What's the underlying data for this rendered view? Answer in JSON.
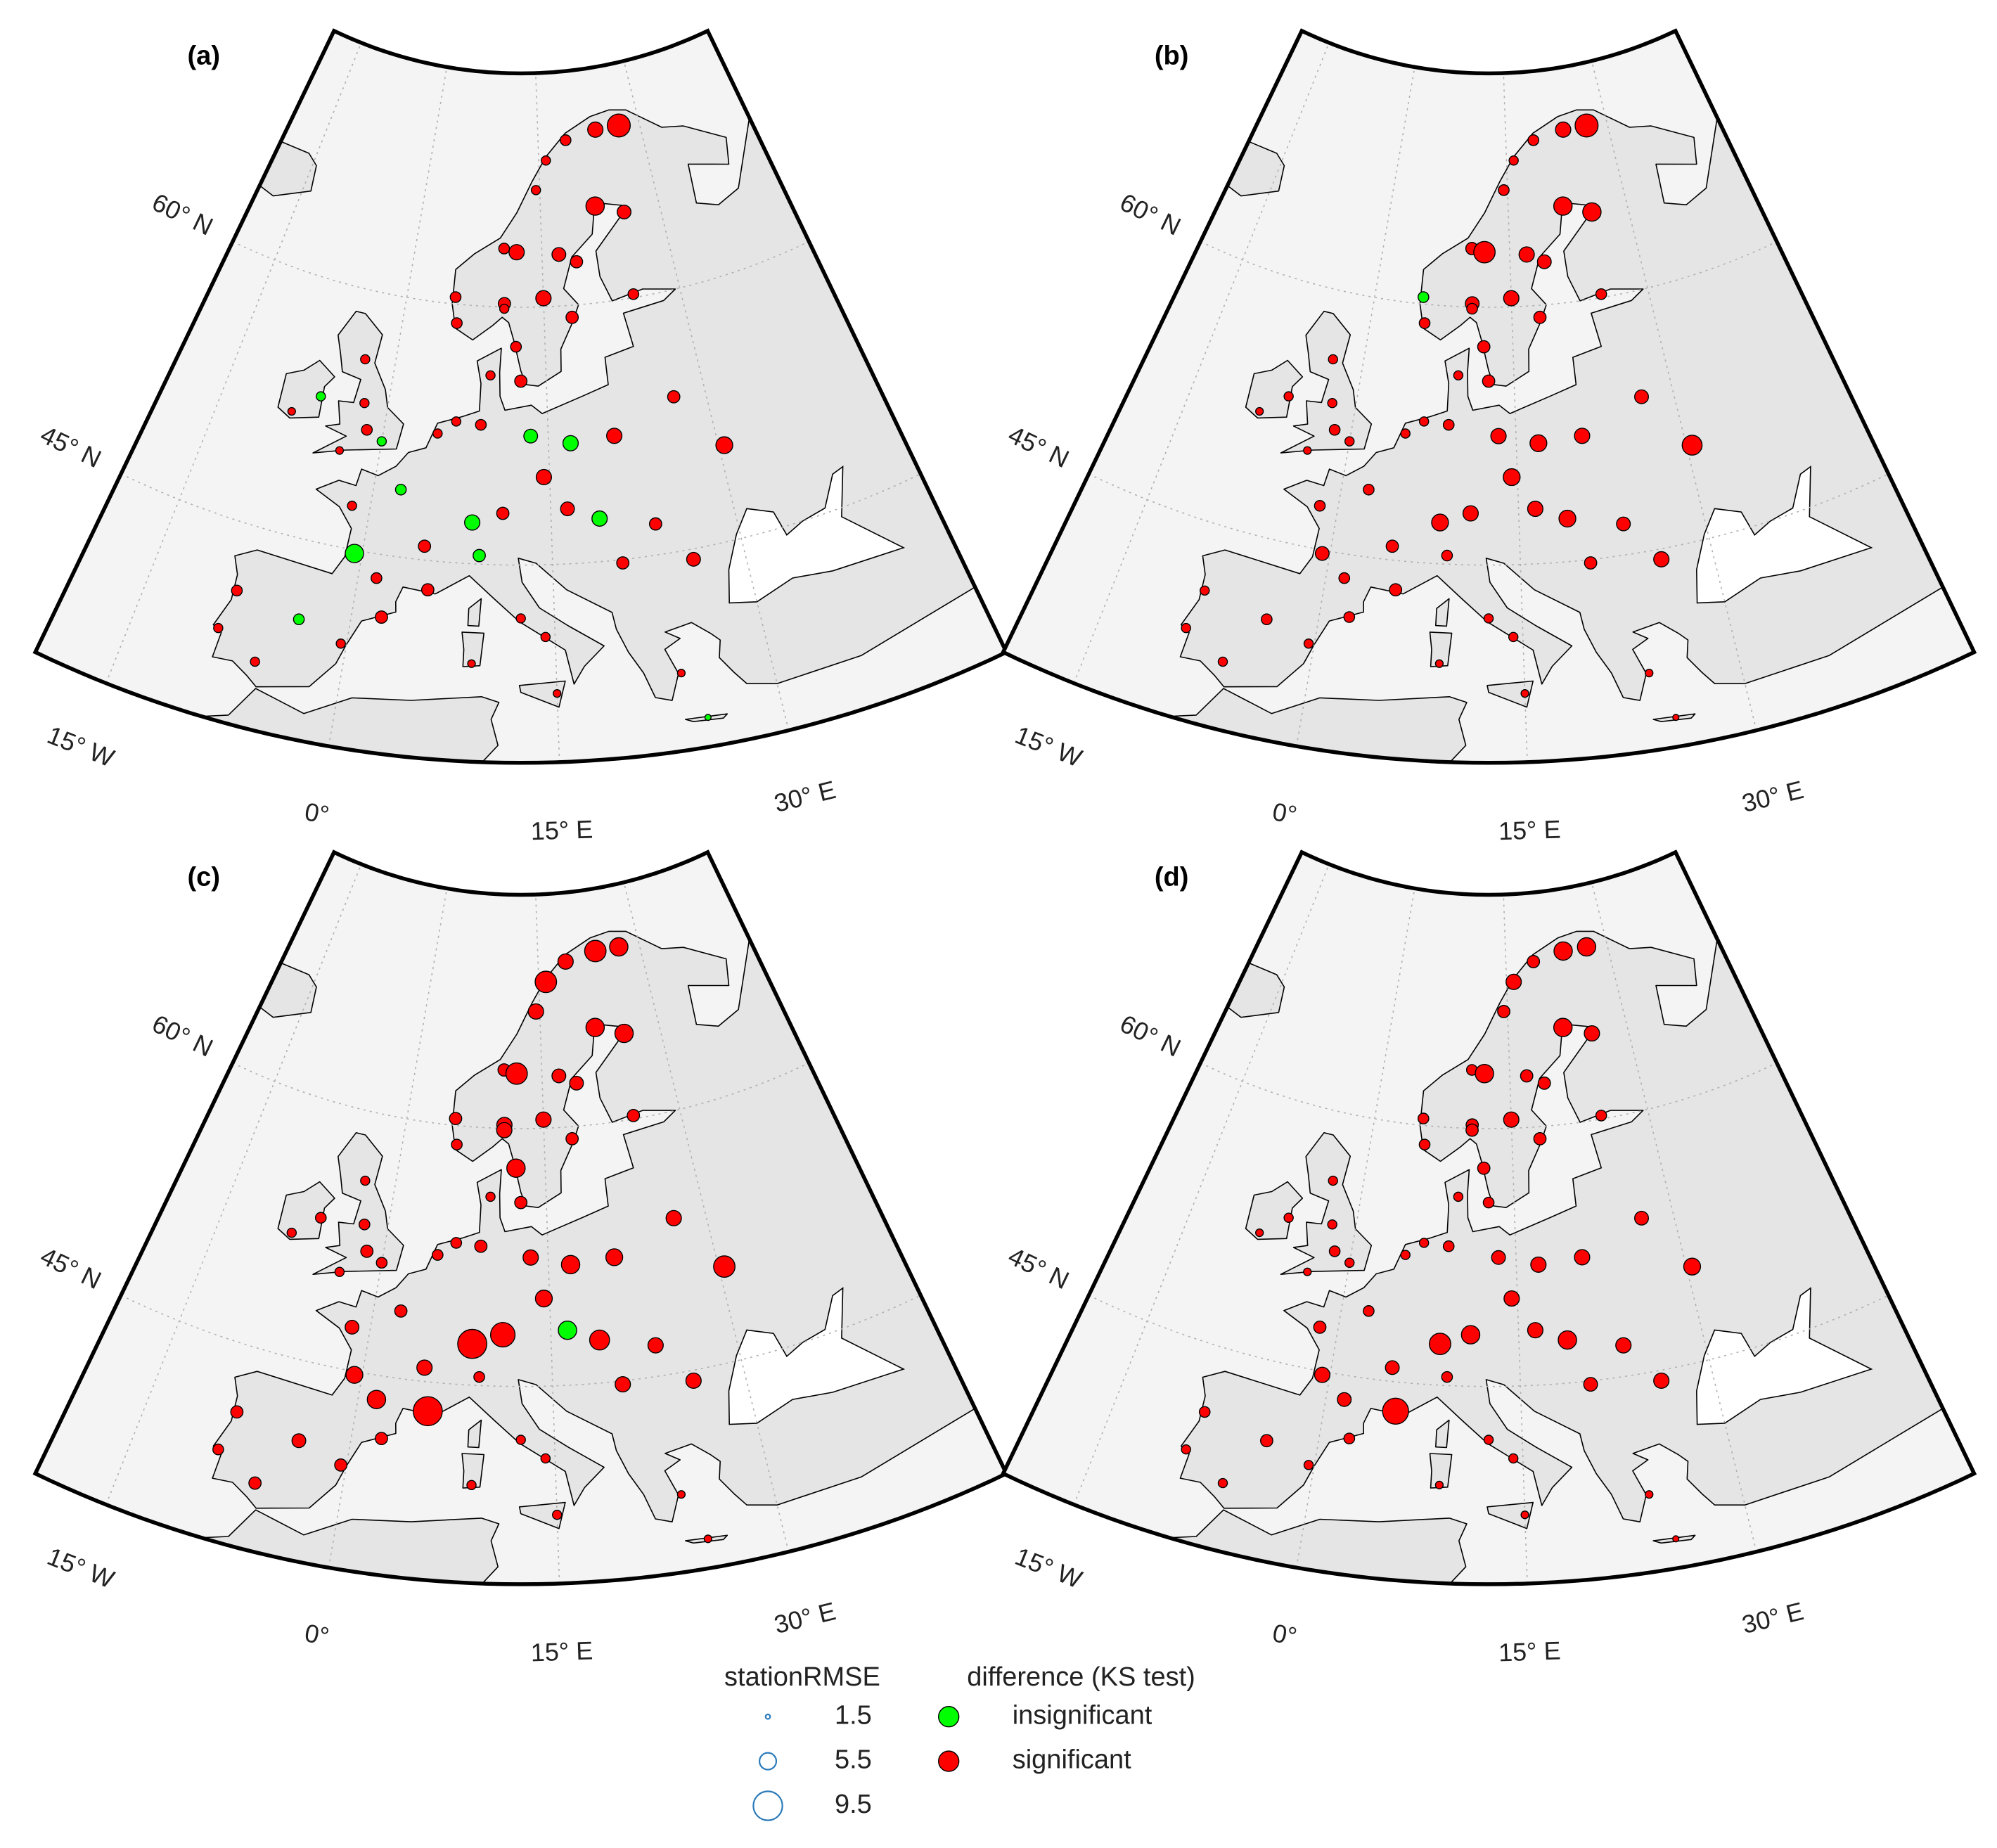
{
  "lonlim": [
    -20,
    45
  ],
  "latlim": [
    33.5,
    73.6
  ],
  "meridians": [
    {
      "value": -15,
      "label": "15° W"
    },
    {
      "value": 0,
      "label": "0°"
    },
    {
      "value": 15,
      "label": "15° E"
    },
    {
      "value": 30,
      "label": "30° E"
    }
  ],
  "parallels": [
    {
      "value": 45,
      "label": "45° N"
    },
    {
      "value": 60,
      "label": "60° N"
    }
  ],
  "stations": [
    [
      16,
      68.5
    ],
    [
      19,
      69.6
    ],
    [
      23.5,
      70
    ],
    [
      27,
      70
    ],
    [
      14.5,
      66.8
    ],
    [
      22,
      65.6
    ],
    [
      10.5,
      63.4
    ],
    [
      12,
      63.2
    ],
    [
      17,
      63
    ],
    [
      25.5,
      65
    ],
    [
      19,
      62.5
    ],
    [
      5.3,
      60.4
    ],
    [
      10.7,
      60.2
    ],
    [
      15,
      60.5
    ],
    [
      24.9,
      60.2
    ],
    [
      18,
      59.3
    ],
    [
      10.7,
      59.9
    ],
    [
      5.7,
      58.9
    ],
    [
      12,
      57.7
    ],
    [
      12.5,
      55.7
    ],
    [
      9.5,
      56
    ],
    [
      -6.3,
      53.3
    ],
    [
      -8.5,
      52
    ],
    [
      -3,
      56
    ],
    [
      -2.2,
      53.5
    ],
    [
      -1.5,
      52
    ],
    [
      0,
      51.5
    ],
    [
      -3.5,
      50.5
    ],
    [
      4.9,
      52.4
    ],
    [
      6.5,
      53.2
    ],
    [
      8.8,
      53.1
    ],
    [
      13.4,
      52.5
    ],
    [
      17,
      52
    ],
    [
      21,
      52.2
    ],
    [
      30.5,
      50.5
    ],
    [
      2.3,
      48.9
    ],
    [
      -1.5,
      47.5
    ],
    [
      4.8,
      45.8
    ],
    [
      8.5,
      47.4
    ],
    [
      11,
      48
    ],
    [
      14.5,
      50.1
    ],
    [
      16.4,
      48.2
    ],
    [
      19,
      47.5
    ],
    [
      23.5,
      46.8
    ],
    [
      26,
      44.4
    ],
    [
      1.4,
      43.6
    ],
    [
      -0.6,
      44.8
    ],
    [
      5.4,
      43.3
    ],
    [
      2.2,
      41.4
    ],
    [
      -3.7,
      40.4
    ],
    [
      -8.6,
      41.1
    ],
    [
      -9.1,
      38.7
    ],
    [
      -6,
      37.4
    ],
    [
      -0.4,
      39.5
    ],
    [
      12.5,
      41.9
    ],
    [
      9.2,
      45.5
    ],
    [
      14.3,
      40.8
    ],
    [
      9,
      39.2
    ],
    [
      25,
      35.2
    ],
    [
      23.7,
      38
    ],
    [
      15,
      37.5
    ],
    [
      20.5,
      44.8
    ],
    [
      27,
      53.9
    ]
  ],
  "panels": [
    {
      "label": "(a)",
      "rmse": [
        3,
        3.5,
        5,
        7.5,
        3,
        6,
        3.5,
        5,
        4.5,
        4.5,
        4,
        3.5,
        4,
        5,
        3.5,
        4,
        3,
        3.5,
        3.5,
        4,
        3,
        3,
        2.5,
        3,
        3,
        3.5,
        3,
        2.5,
        3,
        3,
        3.5,
        4.5,
        5,
        5,
        5.5,
        3.5,
        3,
        4,
        5,
        4,
        5,
        4.5,
        5,
        4,
        4.5,
        3.5,
        6,
        4,
        4,
        3.5,
        3.5,
        3,
        3,
        3,
        3,
        4,
        3,
        2.5,
        2,
        2.5,
        2.5,
        4,
        4
      ],
      "significant": [
        1,
        1,
        1,
        1,
        1,
        1,
        1,
        1,
        1,
        1,
        1,
        1,
        1,
        1,
        1,
        1,
        1,
        1,
        1,
        1,
        1,
        0,
        1,
        1,
        1,
        1,
        0,
        1,
        1,
        1,
        1,
        0,
        0,
        1,
        1,
        0,
        1,
        1,
        0,
        1,
        1,
        1,
        0,
        1,
        1,
        1,
        0,
        1,
        1,
        0,
        1,
        1,
        1,
        1,
        1,
        0,
        1,
        1,
        0,
        1,
        1,
        1,
        1
      ]
    },
    {
      "label": "(b)",
      "rmse": [
        3,
        3.5,
        5,
        7.5,
        3.5,
        6,
        4,
        7,
        5,
        6,
        4.5,
        3.5,
        4.5,
        5,
        3.5,
        4,
        3.5,
        3.5,
        4,
        4,
        3,
        3,
        2.5,
        3,
        3,
        3.5,
        3,
        2.5,
        3,
        3,
        3.5,
        5,
        5.5,
        5,
        6.5,
        3.5,
        3.5,
        4,
        5.5,
        5,
        5.5,
        5,
        5.5,
        4.5,
        5,
        3.5,
        4.5,
        4,
        3.5,
        3.5,
        3,
        3,
        3,
        3,
        3,
        3.5,
        3,
        2.5,
        2,
        2.5,
        2.5,
        4,
        4.5
      ],
      "significant": [
        1,
        1,
        1,
        1,
        1,
        1,
        1,
        1,
        1,
        1,
        1,
        0,
        1,
        1,
        1,
        1,
        1,
        1,
        1,
        1,
        1,
        1,
        1,
        1,
        1,
        1,
        1,
        1,
        1,
        1,
        1,
        1,
        1,
        1,
        1,
        1,
        1,
        1,
        1,
        1,
        1,
        1,
        1,
        1,
        1,
        1,
        1,
        1,
        1,
        1,
        1,
        1,
        1,
        1,
        1,
        1,
        1,
        1,
        1,
        1,
        1,
        1,
        1
      ]
    },
    {
      "label": "(c)",
      "rmse": [
        7,
        5,
        7,
        6,
        5,
        6,
        4,
        7,
        4.5,
        6,
        4.5,
        4,
        5,
        5,
        4,
        4,
        5,
        3.5,
        6,
        4,
        3,
        3.5,
        3,
        3,
        3.5,
        4,
        3.5,
        3,
        3.5,
        3.5,
        4,
        5,
        6,
        5.5,
        7,
        4,
        4.5,
        5,
        9.5,
        8,
        5.5,
        6,
        6.5,
        5,
        5,
        6,
        5.5,
        9.5,
        4,
        4.5,
        4,
        3.5,
        4,
        4,
        3,
        3.5,
        3,
        3,
        2.5,
        2.5,
        3,
        5,
        5
      ],
      "significant": [
        1,
        1,
        1,
        1,
        1,
        1,
        1,
        1,
        1,
        1,
        1,
        1,
        1,
        1,
        1,
        1,
        1,
        1,
        1,
        1,
        1,
        1,
        1,
        1,
        1,
        1,
        1,
        1,
        1,
        1,
        1,
        1,
        1,
        1,
        1,
        1,
        1,
        1,
        1,
        1,
        1,
        0,
        1,
        1,
        1,
        1,
        1,
        1,
        1,
        1,
        1,
        1,
        1,
        1,
        1,
        1,
        1,
        1,
        1,
        1,
        1,
        1,
        1
      ]
    },
    {
      "label": "(d)",
      "rmse": [
        5,
        4,
        6,
        6,
        4,
        6,
        3.5,
        6,
        4,
        5,
        4,
        3.5,
        4,
        5,
        3.5,
        4,
        4,
        3.5,
        4,
        3.5,
        3,
        3,
        2.5,
        3,
        3,
        3.5,
        3,
        2.5,
        3,
        3,
        3.5,
        4.5,
        5,
        5,
        5.5,
        3.5,
        4,
        4.5,
        7,
        6,
        5,
        5,
        6,
        5,
        5,
        4.5,
        5,
        8.5,
        3.5,
        4,
        3.5,
        3,
        3,
        3,
        3,
        3.5,
        3,
        2.5,
        2,
        2.5,
        2.5,
        4.5,
        4.5
      ],
      "significant": [
        1,
        1,
        1,
        1,
        1,
        1,
        1,
        1,
        1,
        1,
        1,
        1,
        1,
        1,
        1,
        1,
        1,
        1,
        1,
        1,
        1,
        1,
        1,
        1,
        1,
        1,
        1,
        1,
        1,
        1,
        1,
        1,
        1,
        1,
        1,
        1,
        1,
        1,
        1,
        1,
        1,
        1,
        1,
        1,
        1,
        1,
        1,
        1,
        1,
        1,
        1,
        1,
        1,
        1,
        1,
        1,
        1,
        1,
        1,
        1,
        1,
        1,
        1
      ]
    }
  ],
  "legend": {
    "size_title": "stationRMSE",
    "sizes": [
      1.5,
      5.5,
      9.5
    ],
    "size_color": "#2b7bba",
    "color_title": "difference (KS test)",
    "classes": [
      {
        "name": "insignificant",
        "color": "#00ff00"
      },
      {
        "name": "significant",
        "color": "#ff0000"
      }
    ]
  }
}
